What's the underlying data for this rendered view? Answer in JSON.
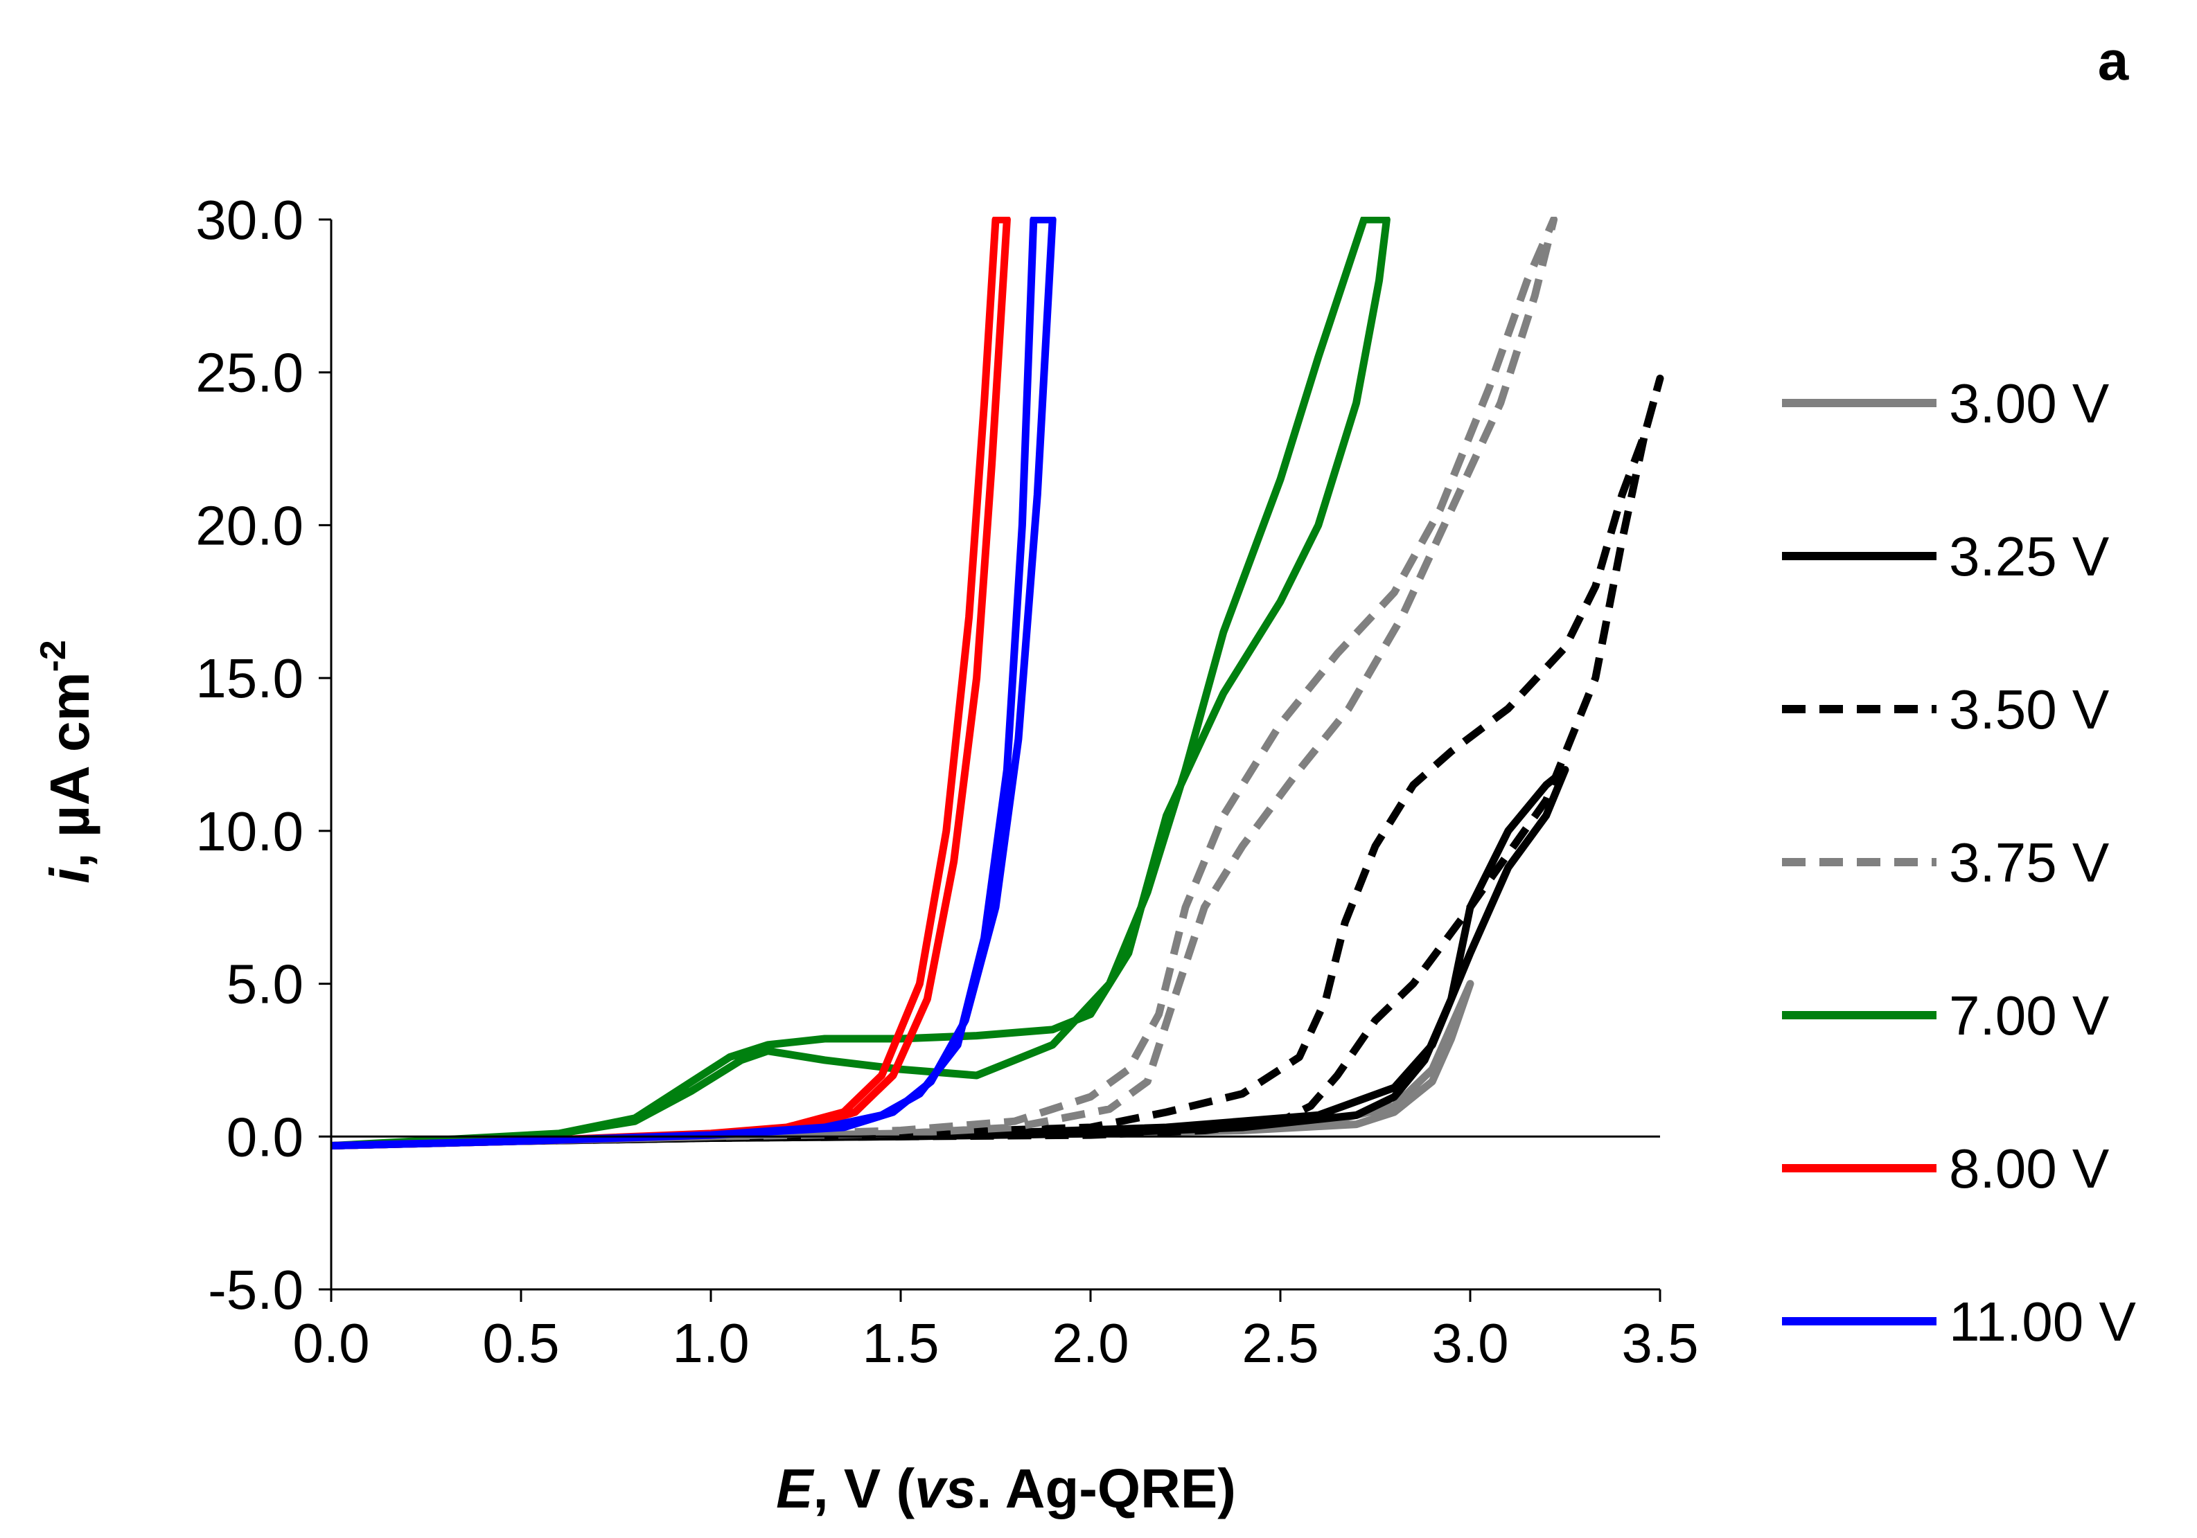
{
  "panel_label": "a",
  "chart_data": {
    "type": "line",
    "title": "",
    "xlabel": {
      "italic": "E",
      "rest": ", V (",
      "italic2": "vs",
      "rest2": ". Ag-QRE)"
    },
    "ylabel": {
      "italic": "i",
      "rest": ", µA cm",
      "sup": "-2"
    },
    "xlim": [
      0.0,
      3.5
    ],
    "ylim": [
      -5.0,
      30.0
    ],
    "xticks": [
      "0.0",
      "0.5",
      "1.0",
      "1.5",
      "2.0",
      "2.5",
      "3.0",
      "3.5"
    ],
    "yticks": [
      "-5.0",
      "0.0",
      "5.0",
      "10.0",
      "15.0",
      "20.0",
      "25.0",
      "30.0"
    ],
    "legend_position": "right",
    "series": [
      {
        "name": "3.00 V",
        "color": "#808080",
        "dash": "solid",
        "x": [
          0.0,
          0.5,
          1.0,
          1.5,
          2.0,
          2.4,
          2.7,
          2.8,
          2.9,
          2.95,
          3.0,
          2.95,
          2.9,
          2.8,
          2.6,
          2.2,
          1.6,
          1.0,
          0.5,
          0.0
        ],
        "y": [
          -0.3,
          -0.15,
          -0.05,
          0.0,
          0.1,
          0.2,
          0.4,
          0.8,
          1.8,
          3.2,
          5.0,
          3.6,
          2.2,
          1.0,
          0.4,
          0.2,
          0.05,
          -0.05,
          -0.15,
          -0.3
        ]
      },
      {
        "name": "3.25 V",
        "color": "#000000",
        "dash": "solid",
        "x": [
          0.0,
          0.5,
          1.0,
          1.5,
          2.0,
          2.4,
          2.7,
          2.8,
          2.88,
          2.95,
          3.0,
          3.1,
          3.2,
          3.25,
          3.2,
          3.1,
          3.0,
          2.95,
          2.9,
          2.8,
          2.6,
          2.2,
          1.6,
          1.0,
          0.5,
          0.0
        ],
        "y": [
          -0.3,
          -0.15,
          -0.05,
          0.0,
          0.1,
          0.3,
          0.7,
          1.3,
          2.5,
          4.5,
          7.5,
          10.0,
          11.5,
          12.0,
          10.5,
          8.8,
          6.0,
          4.5,
          3.0,
          1.6,
          0.7,
          0.3,
          0.05,
          -0.05,
          -0.15,
          -0.3
        ]
      },
      {
        "name": "3.50 V",
        "color": "#000000",
        "dash": "dash",
        "x": [
          0.0,
          0.5,
          1.0,
          1.5,
          2.0,
          2.2,
          2.4,
          2.55,
          2.62,
          2.67,
          2.75,
          2.85,
          2.95,
          3.1,
          3.25,
          3.33,
          3.4,
          3.46,
          3.5,
          3.46,
          3.4,
          3.33,
          3.2,
          3.0,
          2.85,
          2.75,
          2.65,
          2.58,
          2.5,
          2.3,
          2.0,
          1.5,
          1.0,
          0.5,
          0.0
        ],
        "y": [
          -0.3,
          -0.15,
          -0.05,
          0.1,
          0.3,
          0.8,
          1.4,
          2.6,
          4.5,
          7.0,
          9.5,
          11.5,
          12.6,
          14.0,
          16.0,
          18.0,
          21.0,
          23.0,
          24.8,
          23.0,
          19.5,
          15.0,
          11.0,
          7.5,
          5.0,
          3.8,
          2.0,
          1.0,
          0.5,
          0.2,
          0.05,
          0.0,
          -0.05,
          -0.15,
          -0.3
        ]
      },
      {
        "name": "3.75 V",
        "color": "#808080",
        "dash": "dash",
        "x": [
          0.0,
          0.5,
          1.0,
          1.5,
          1.8,
          2.0,
          2.1,
          2.18,
          2.25,
          2.35,
          2.5,
          2.65,
          2.8,
          2.92,
          3.05,
          3.15,
          3.22,
          3.17,
          3.08,
          2.95,
          2.82,
          2.68,
          2.55,
          2.4,
          2.3,
          2.22,
          2.15,
          2.05,
          1.8,
          1.5,
          1.0,
          0.5,
          0.0
        ],
        "y": [
          -0.3,
          -0.15,
          0.0,
          0.2,
          0.5,
          1.3,
          2.2,
          4.0,
          7.5,
          10.5,
          13.5,
          15.8,
          17.8,
          20.5,
          24.5,
          28.0,
          30.0,
          27.5,
          24.0,
          20.5,
          17.0,
          14.0,
          12.0,
          9.5,
          7.5,
          4.5,
          1.8,
          0.9,
          0.3,
          0.1,
          0.0,
          -0.15,
          -0.3
        ]
      },
      {
        "name": "7.00 V",
        "color": "#00800f",
        "dash": "solid",
        "x": [
          0.0,
          0.3,
          0.6,
          0.8,
          0.95,
          1.05,
          1.15,
          1.3,
          1.5,
          1.7,
          1.9,
          2.0,
          2.1,
          2.2,
          2.35,
          2.5,
          2.6,
          2.7,
          2.76,
          2.78,
          2.72,
          2.6,
          2.5,
          2.35,
          2.25,
          2.15,
          2.05,
          1.9,
          1.7,
          1.5,
          1.3,
          1.15,
          1.08,
          0.95,
          0.8,
          0.6,
          0.3,
          0.0
        ],
        "y": [
          -0.3,
          -0.1,
          0.1,
          0.6,
          1.8,
          2.6,
          3.0,
          3.2,
          3.2,
          3.3,
          3.5,
          4.0,
          6.0,
          10.5,
          14.5,
          17.5,
          20.0,
          24.0,
          28.0,
          30.0,
          30.0,
          25.5,
          21.5,
          16.5,
          12.0,
          8.0,
          5.0,
          3.0,
          2.0,
          2.2,
          2.5,
          2.8,
          2.5,
          1.5,
          0.5,
          0.1,
          -0.1,
          -0.3
        ]
      },
      {
        "name": "8.00 V",
        "color": "#ff0000",
        "dash": "solid",
        "x": [
          0.0,
          0.5,
          1.0,
          1.2,
          1.35,
          1.45,
          1.55,
          1.62,
          1.68,
          1.72,
          1.75,
          1.78,
          1.74,
          1.7,
          1.64,
          1.57,
          1.48,
          1.38,
          1.25,
          1.0,
          0.5,
          0.0
        ],
        "y": [
          -0.3,
          -0.15,
          0.1,
          0.3,
          0.8,
          2.0,
          5.0,
          10.0,
          17.0,
          24.0,
          30.0,
          30.0,
          22.0,
          15.0,
          9.0,
          4.5,
          2.0,
          0.8,
          0.3,
          0.05,
          -0.15,
          -0.3
        ]
      },
      {
        "name": "11.00 V",
        "color": "#0000ff",
        "dash": "solid",
        "x": [
          0.0,
          0.5,
          1.0,
          1.3,
          1.45,
          1.55,
          1.65,
          1.72,
          1.78,
          1.82,
          1.85,
          1.9,
          1.86,
          1.81,
          1.75,
          1.67,
          1.58,
          1.48,
          1.35,
          1.0,
          0.5,
          0.0
        ],
        "y": [
          -0.3,
          -0.15,
          0.05,
          0.3,
          0.7,
          1.4,
          3.0,
          6.5,
          12.0,
          20.0,
          30.0,
          30.0,
          21.0,
          13.0,
          7.5,
          3.8,
          1.8,
          0.8,
          0.3,
          0.05,
          -0.15,
          -0.3
        ]
      }
    ]
  }
}
